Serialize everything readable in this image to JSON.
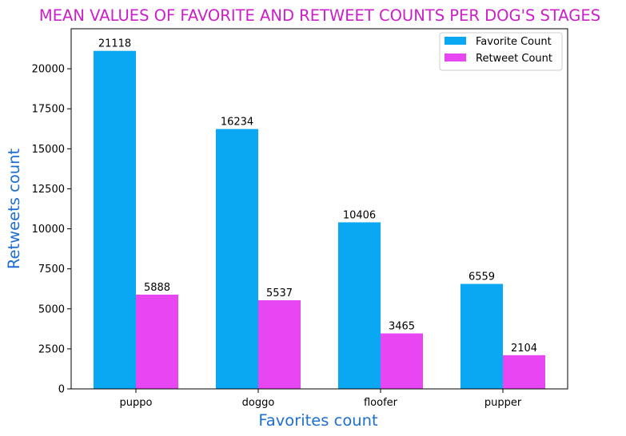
{
  "chart_data": {
    "type": "bar",
    "title": "MEAN VALUES OF FAVORITE AND RETWEET COUNTS PER DOG'S STAGES",
    "xlabel": "Favorites count",
    "ylabel": "Retweets count",
    "categories": [
      "puppo",
      "doggo",
      "floofer",
      "pupper"
    ],
    "series": [
      {
        "name": "Favorite Count",
        "values": [
          21118,
          16234,
          10406,
          6559
        ],
        "labels": [
          "21118",
          "16234",
          "10406",
          "6559"
        ],
        "color": "#0aa8f2"
      },
      {
        "name": "Retweet Count",
        "values": [
          5888,
          5537,
          3465,
          2104
        ],
        "labels": [
          "5888",
          "5537",
          "3465",
          "2104"
        ],
        "color": "#e846f2"
      }
    ],
    "ylim": [
      0,
      22500
    ],
    "yticks": [
      0,
      2500,
      5000,
      7500,
      10000,
      12500,
      15000,
      17500,
      20000
    ],
    "ytick_labels": [
      "0",
      "2500",
      "5000",
      "7500",
      "10000",
      "12500",
      "15000",
      "17500",
      "20000"
    ],
    "grid": false,
    "legend_position": "top-right",
    "title_color": "#cc1fc9",
    "label_color": "#1f6fd1"
  }
}
